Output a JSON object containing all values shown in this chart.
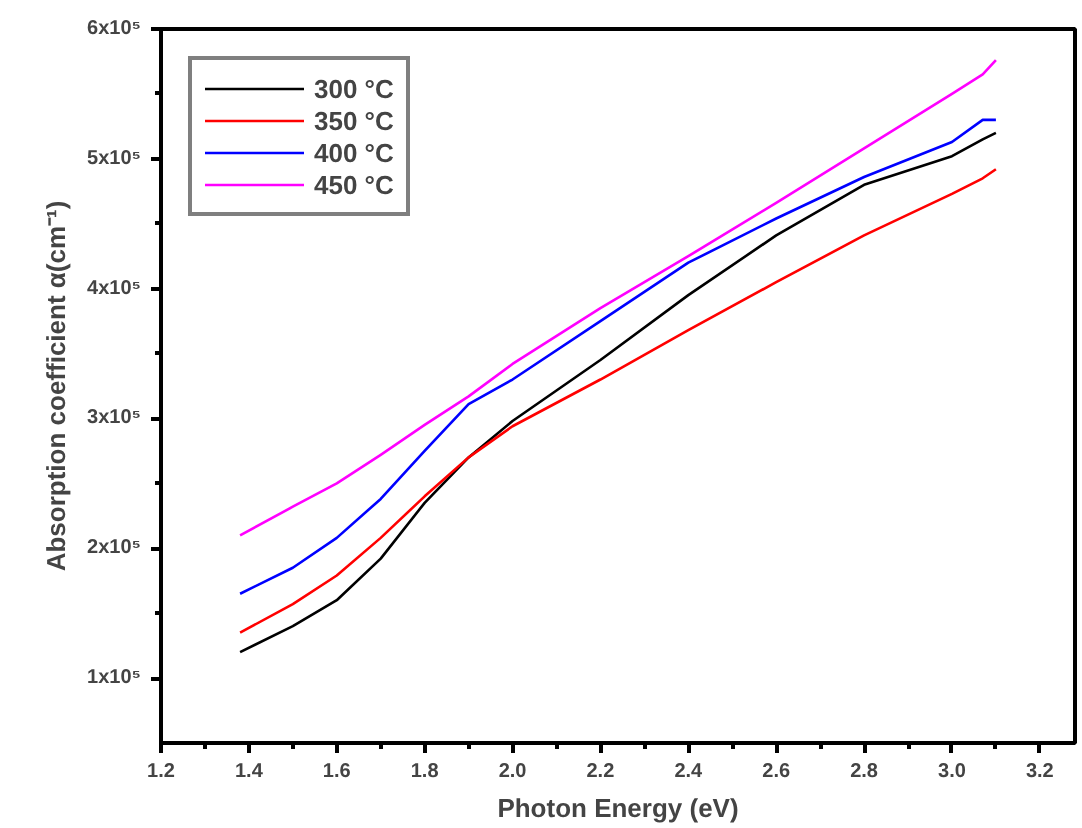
{
  "chart_data": {
    "type": "line",
    "xlabel": "Photon Energy (eV)",
    "ylabel": "Absorption coefficient α(cm⁻¹)",
    "xlim": [
      1.2,
      3.28
    ],
    "ylim": [
      50000,
      600000
    ],
    "xticks": [
      1.2,
      {
        "value": 1.3,
        "label": null
      },
      1.4,
      {
        "value": 1.5,
        "label": null
      },
      1.6,
      {
        "value": 1.7,
        "label": null
      },
      1.8,
      {
        "value": 1.9,
        "label": null
      },
      {
        "value": 2.0,
        "label": "2.0"
      },
      {
        "value": 2.1,
        "label": null
      },
      2.2,
      {
        "value": 2.3,
        "label": null
      },
      2.4,
      {
        "value": 2.5,
        "label": null
      },
      2.6,
      {
        "value": 2.7,
        "label": null
      },
      2.8,
      {
        "value": 2.9,
        "label": null
      },
      {
        "value": 3.0,
        "label": "3.0"
      },
      {
        "value": 3.1,
        "label": null
      },
      3.2
    ],
    "yticks": [
      {
        "value": 100000,
        "label": "1x10⁵"
      },
      {
        "value": 150000,
        "label": null
      },
      {
        "value": 200000,
        "label": "2x10⁵"
      },
      {
        "value": 250000,
        "label": null
      },
      {
        "value": 300000,
        "label": "3x10⁵"
      },
      {
        "value": 350000,
        "label": null
      },
      {
        "value": 400000,
        "label": "4x10⁵"
      },
      {
        "value": 450000,
        "label": null
      },
      {
        "value": 500000,
        "label": "5x10⁵"
      },
      {
        "value": 550000,
        "label": null
      },
      {
        "value": 600000,
        "label": "6x10⁵"
      }
    ],
    "x": [
      1.38,
      1.5,
      1.6,
      1.7,
      1.8,
      1.9,
      2.0,
      2.2,
      2.4,
      2.6,
      2.8,
      3.0,
      3.07,
      3.1
    ],
    "series": [
      {
        "name": "300 °C",
        "color": "#000000",
        "values": [
          120000,
          140000,
          160000,
          192000,
          235000,
          270000,
          298000,
          345000,
          395000,
          441000,
          480000,
          502000,
          515000,
          520000
        ]
      },
      {
        "name": "350 °C",
        "color": "#ff0000",
        "values": [
          135000,
          157000,
          179000,
          208000,
          240000,
          270000,
          294000,
          330000,
          368000,
          405000,
          441000,
          473000,
          485000,
          492000
        ]
      },
      {
        "name": "400 °C",
        "color": "#0000ff",
        "values": [
          165000,
          185000,
          208000,
          238000,
          275000,
          311000,
          330000,
          375000,
          420000,
          454000,
          486000,
          513000,
          530000,
          530000
        ]
      },
      {
        "name": "450 °C",
        "color": "#ff00ff",
        "values": [
          210000,
          232000,
          250000,
          272000,
          295000,
          317000,
          342000,
          385000,
          425000,
          466000,
          508000,
          550000,
          565000,
          576000
        ]
      }
    ],
    "legend": "top left",
    "grid": false,
    "marker": "none",
    "line_style": "solid"
  }
}
